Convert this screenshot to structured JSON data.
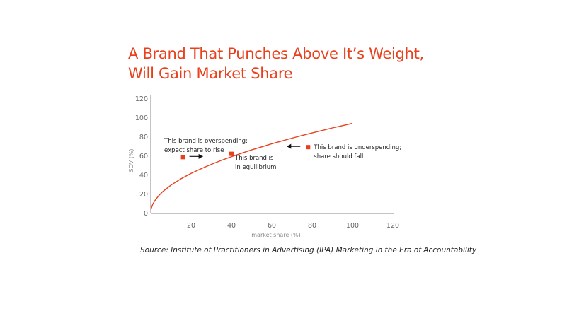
{
  "title_line1": "A Brand That Punches Above It’s Weight,",
  "title_line2": "Will Gain Market Share",
  "source": "Source: Institute of Practitioners in Advertising (IPA) Marketing in the Era of Accountability",
  "colors": {
    "accent": "#e8401c",
    "axis": "#888888",
    "text": "#222222"
  },
  "chart_data": {
    "type": "line",
    "title": "A Brand That Punches Above It’s Weight, Will Gain Market Share",
    "xlabel": "market share (%)",
    "ylabel": "SOV (%)",
    "xlim": [
      0,
      120
    ],
    "ylim": [
      0,
      120
    ],
    "x_ticks": [
      20,
      40,
      60,
      80,
      100,
      120
    ],
    "y_ticks": [
      0,
      20,
      40,
      60,
      80,
      100,
      120
    ],
    "grid": false,
    "series": [
      {
        "type": "line",
        "x": [
          0,
          1,
          2,
          4,
          6,
          10,
          15,
          20,
          25,
          30,
          35,
          40,
          45,
          50,
          55,
          60,
          65,
          70,
          75,
          80,
          85,
          90,
          95,
          100
        ],
        "y": [
          4,
          9.7,
          13.4,
          18.8,
          23,
          29.7,
          36.4,
          42,
          47,
          51.5,
          55.6,
          59.5,
          63.1,
          66.6,
          69.8,
          73,
          76,
          78.9,
          81.7,
          84.4,
          87,
          89.6,
          92,
          94.5
        ]
      },
      {
        "type": "scatter",
        "points": [
          {
            "x": 16,
            "y": 59
          },
          {
            "x": 40,
            "y": 62.5
          },
          {
            "x": 78,
            "y": 69.5
          }
        ]
      }
    ],
    "annotations": [
      {
        "line1": "This brand is overspending;",
        "line2": "expect share to rise",
        "arrow": "right"
      },
      {
        "line1": "This brand is",
        "line2": "in equilibrium",
        "arrow": "none"
      },
      {
        "line1": "This brand is underspending;",
        "line2": "share should fall",
        "arrow": "left"
      }
    ]
  }
}
